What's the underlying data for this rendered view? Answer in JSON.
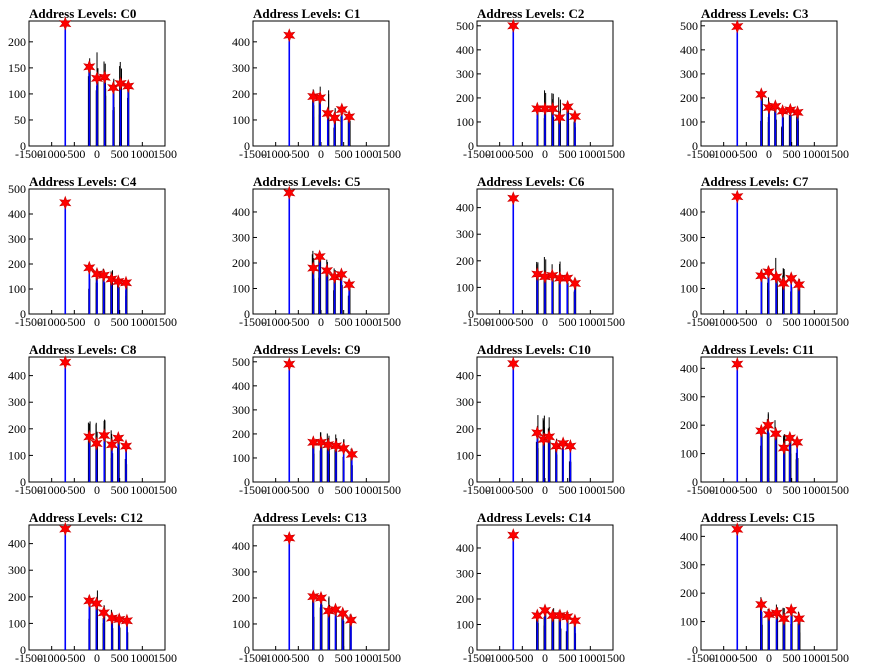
{
  "figure": {
    "x_ticks": [
      -1500,
      -1000,
      -500,
      0,
      500,
      1000,
      1500
    ],
    "xlim": [
      -1500,
      1500
    ],
    "colors": {
      "line": "#0000ff",
      "noise": "#000000",
      "marker": "#ff0000",
      "axis": "#000000"
    },
    "marker_icon": "star-icon"
  },
  "chart_data": [
    {
      "type": "line",
      "title": "Address Levels: C0",
      "ylim": [
        0,
        240
      ],
      "y_ticks": [
        0,
        50,
        100,
        150,
        200
      ],
      "peaks": [
        {
          "x": -700,
          "y": 235
        },
        {
          "x": -170,
          "y": 152
        },
        {
          "x": 0,
          "y": 130
        },
        {
          "x": 170,
          "y": 132
        },
        {
          "x": 360,
          "y": 112
        },
        {
          "x": 520,
          "y": 120
        },
        {
          "x": 690,
          "y": 115
        }
      ],
      "noise_height": [
        0,
        210,
        195,
        205,
        140,
        165,
        130
      ]
    },
    {
      "type": "line",
      "title": "Address Levels: C1",
      "ylim": [
        0,
        480
      ],
      "y_ticks": [
        0,
        100,
        200,
        300,
        400
      ],
      "peaks": [
        {
          "x": -700,
          "y": 425
        },
        {
          "x": -170,
          "y": 190
        },
        {
          "x": -20,
          "y": 185
        },
        {
          "x": 150,
          "y": 125
        },
        {
          "x": 300,
          "y": 108
        },
        {
          "x": 460,
          "y": 140
        },
        {
          "x": 620,
          "y": 112
        }
      ],
      "noise_height": [
        0,
        230,
        230,
        215,
        150,
        160,
        130
      ]
    },
    {
      "type": "line",
      "title": "Address Levels: C2",
      "ylim": [
        0,
        520
      ],
      "y_ticks": [
        0,
        100,
        200,
        300,
        400,
        500
      ],
      "peaks": [
        {
          "x": -700,
          "y": 500
        },
        {
          "x": -170,
          "y": 155
        },
        {
          "x": 0,
          "y": 155
        },
        {
          "x": 170,
          "y": 155
        },
        {
          "x": 320,
          "y": 118
        },
        {
          "x": 500,
          "y": 163
        },
        {
          "x": 660,
          "y": 123
        }
      ],
      "noise_height": [
        0,
        235,
        232,
        230,
        205,
        175,
        130
      ]
    },
    {
      "type": "line",
      "title": "Address Levels: C3",
      "ylim": [
        0,
        520
      ],
      "y_ticks": [
        0,
        100,
        200,
        300,
        400,
        500
      ],
      "peaks": [
        {
          "x": -700,
          "y": 497
        },
        {
          "x": -170,
          "y": 215
        },
        {
          "x": 0,
          "y": 160
        },
        {
          "x": 140,
          "y": 165
        },
        {
          "x": 300,
          "y": 145
        },
        {
          "x": 470,
          "y": 150
        },
        {
          "x": 630,
          "y": 140
        }
      ],
      "noise_height": [
        0,
        220,
        210,
        200,
        160,
        165,
        150
      ]
    },
    {
      "type": "line",
      "title": "Address Levels: C4",
      "ylim": [
        0,
        500
      ],
      "y_ticks": [
        0,
        100,
        200,
        300,
        400,
        500
      ],
      "peaks": [
        {
          "x": -700,
          "y": 445
        },
        {
          "x": -170,
          "y": 185
        },
        {
          "x": 0,
          "y": 160
        },
        {
          "x": 150,
          "y": 155
        },
        {
          "x": 320,
          "y": 140
        },
        {
          "x": 470,
          "y": 130
        },
        {
          "x": 640,
          "y": 125
        }
      ],
      "noise_height": [
        0,
        220,
        215,
        220,
        175,
        150,
        140
      ]
    },
    {
      "type": "line",
      "title": "Address Levels: C5",
      "ylim": [
        0,
        490
      ],
      "y_ticks": [
        0,
        100,
        200,
        300,
        400
      ],
      "peaks": [
        {
          "x": -700,
          "y": 475
        },
        {
          "x": -170,
          "y": 180
        },
        {
          "x": -30,
          "y": 225
        },
        {
          "x": 130,
          "y": 170
        },
        {
          "x": 300,
          "y": 145
        },
        {
          "x": 450,
          "y": 155
        },
        {
          "x": 620,
          "y": 115
        }
      ],
      "noise_height": [
        0,
        250,
        240,
        270,
        180,
        175,
        145
      ]
    },
    {
      "type": "line",
      "title": "Address Levels: C6",
      "ylim": [
        0,
        470
      ],
      "y_ticks": [
        0,
        100,
        200,
        300,
        400
      ],
      "peaks": [
        {
          "x": -700,
          "y": 435
        },
        {
          "x": -170,
          "y": 150
        },
        {
          "x": 0,
          "y": 140
        },
        {
          "x": 160,
          "y": 145
        },
        {
          "x": 330,
          "y": 135
        },
        {
          "x": 490,
          "y": 135
        },
        {
          "x": 660,
          "y": 115
        }
      ],
      "noise_height": [
        0,
        225,
        225,
        230,
        200,
        160,
        140
      ]
    },
    {
      "type": "line",
      "title": "Address Levels: C7",
      "ylim": [
        0,
        490
      ],
      "y_ticks": [
        0,
        100,
        200,
        300,
        400
      ],
      "peaks": [
        {
          "x": -700,
          "y": 460
        },
        {
          "x": -170,
          "y": 150
        },
        {
          "x": -10,
          "y": 165
        },
        {
          "x": 160,
          "y": 145
        },
        {
          "x": 320,
          "y": 120
        },
        {
          "x": 490,
          "y": 140
        },
        {
          "x": 660,
          "y": 115
        }
      ],
      "noise_height": [
        0,
        220,
        200,
        220,
        180,
        165,
        140
      ]
    },
    {
      "type": "line",
      "title": "Address Levels: C8",
      "ylim": [
        0,
        470
      ],
      "y_ticks": [
        0,
        100,
        200,
        300,
        400
      ],
      "peaks": [
        {
          "x": -700,
          "y": 450
        },
        {
          "x": -170,
          "y": 170
        },
        {
          "x": -10,
          "y": 145
        },
        {
          "x": 160,
          "y": 175
        },
        {
          "x": 330,
          "y": 140
        },
        {
          "x": 470,
          "y": 165
        },
        {
          "x": 640,
          "y": 135
        }
      ],
      "noise_height": [
        0,
        240,
        240,
        255,
        200,
        175,
        145
      ]
    },
    {
      "type": "line",
      "title": "Address Levels: C9",
      "ylim": [
        0,
        520
      ],
      "y_ticks": [
        0,
        100,
        200,
        300,
        400,
        500
      ],
      "peaks": [
        {
          "x": -700,
          "y": 490
        },
        {
          "x": -170,
          "y": 165
        },
        {
          "x": 0,
          "y": 165
        },
        {
          "x": 160,
          "y": 155
        },
        {
          "x": 330,
          "y": 150
        },
        {
          "x": 500,
          "y": 140
        },
        {
          "x": 680,
          "y": 115
        }
      ],
      "noise_height": [
        0,
        235,
        235,
        240,
        205,
        180,
        140
      ]
    },
    {
      "type": "line",
      "title": "Address Levels: C10",
      "ylim": [
        0,
        470
      ],
      "y_ticks": [
        0,
        100,
        200,
        300,
        400
      ],
      "peaks": [
        {
          "x": -700,
          "y": 445
        },
        {
          "x": -170,
          "y": 185
        },
        {
          "x": -30,
          "y": 160
        },
        {
          "x": 90,
          "y": 170
        },
        {
          "x": 250,
          "y": 135
        },
        {
          "x": 400,
          "y": 145
        },
        {
          "x": 560,
          "y": 135
        }
      ],
      "noise_height": [
        0,
        265,
        280,
        250,
        170,
        165,
        140
      ]
    },
    {
      "type": "line",
      "title": "Address Levels: C11",
      "ylim": [
        0,
        440
      ],
      "y_ticks": [
        0,
        100,
        200,
        300,
        400
      ],
      "peaks": [
        {
          "x": -700,
          "y": 415
        },
        {
          "x": -170,
          "y": 180
        },
        {
          "x": -20,
          "y": 200
        },
        {
          "x": 150,
          "y": 170
        },
        {
          "x": 330,
          "y": 120
        },
        {
          "x": 460,
          "y": 155
        },
        {
          "x": 620,
          "y": 140
        }
      ],
      "noise_height": [
        0,
        240,
        260,
        240,
        175,
        170,
        145
      ]
    },
    {
      "type": "line",
      "title": "Address Levels: C12",
      "ylim": [
        0,
        470
      ],
      "y_ticks": [
        0,
        100,
        200,
        300,
        400
      ],
      "peaks": [
        {
          "x": -700,
          "y": 455
        },
        {
          "x": -170,
          "y": 185
        },
        {
          "x": -10,
          "y": 175
        },
        {
          "x": 150,
          "y": 140
        },
        {
          "x": 330,
          "y": 120
        },
        {
          "x": 490,
          "y": 115
        },
        {
          "x": 660,
          "y": 110
        }
      ],
      "noise_height": [
        0,
        210,
        225,
        200,
        160,
        140,
        130
      ]
    },
    {
      "type": "line",
      "title": "Address Levels: C13",
      "ylim": [
        0,
        480
      ],
      "y_ticks": [
        0,
        100,
        200,
        300,
        400
      ],
      "peaks": [
        {
          "x": -700,
          "y": 430
        },
        {
          "x": -170,
          "y": 205
        },
        {
          "x": 0,
          "y": 200
        },
        {
          "x": 170,
          "y": 150
        },
        {
          "x": 320,
          "y": 155
        },
        {
          "x": 480,
          "y": 140
        },
        {
          "x": 660,
          "y": 115
        }
      ],
      "noise_height": [
        0,
        230,
        225,
        215,
        180,
        165,
        140
      ]
    },
    {
      "type": "line",
      "title": "Address Levels: C14",
      "ylim": [
        0,
        490
      ],
      "y_ticks": [
        0,
        100,
        200,
        300,
        400
      ],
      "peaks": [
        {
          "x": -700,
          "y": 450
        },
        {
          "x": -170,
          "y": 135
        },
        {
          "x": 0,
          "y": 155
        },
        {
          "x": 170,
          "y": 135
        },
        {
          "x": 330,
          "y": 135
        },
        {
          "x": 490,
          "y": 130
        },
        {
          "x": 660,
          "y": 115
        }
      ],
      "noise_height": [
        0,
        165,
        175,
        165,
        160,
        150,
        140
      ]
    },
    {
      "type": "line",
      "title": "Address Levels: C15",
      "ylim": [
        0,
        440
      ],
      "y_ticks": [
        0,
        100,
        200,
        300,
        400
      ],
      "peaks": [
        {
          "x": -700,
          "y": 425
        },
        {
          "x": -170,
          "y": 160
        },
        {
          "x": 0,
          "y": 125
        },
        {
          "x": 170,
          "y": 130
        },
        {
          "x": 330,
          "y": 110
        },
        {
          "x": 490,
          "y": 140
        },
        {
          "x": 660,
          "y": 110
        }
      ],
      "noise_height": [
        0,
        195,
        165,
        175,
        160,
        160,
        135
      ]
    }
  ]
}
